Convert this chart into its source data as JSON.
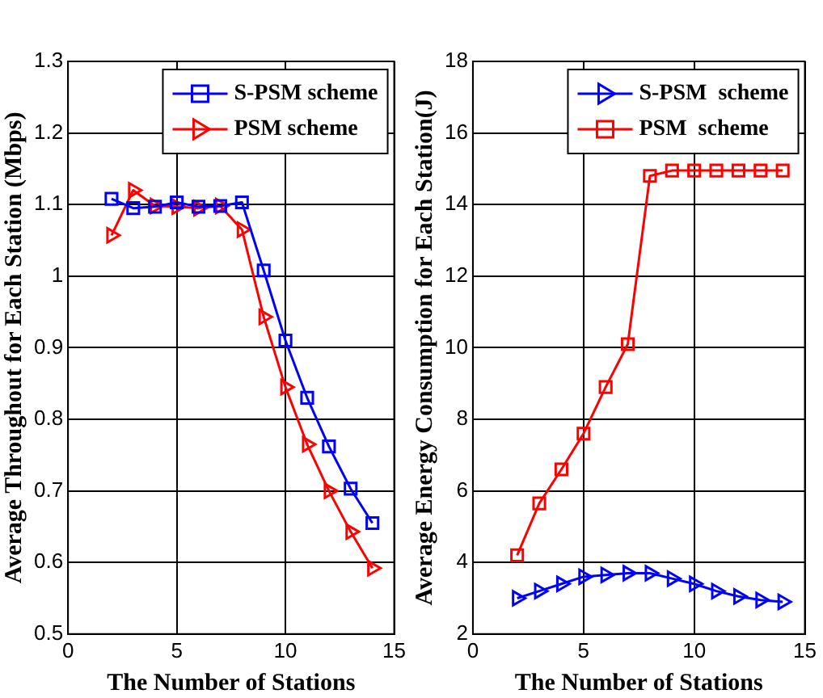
{
  "chart_data": [
    {
      "type": "line",
      "xlabel": "The Number of Stations",
      "ylabel": "Average Throughout for Each Station (Mbps)",
      "x": [
        2,
        3,
        4,
        5,
        6,
        7,
        8,
        9,
        10,
        11,
        12,
        13,
        14
      ],
      "xlim": [
        0,
        15
      ],
      "xticks": [
        0,
        5,
        10,
        15
      ],
      "ylim": [
        0.5,
        1.3
      ],
      "yticks": [
        0.5,
        0.6,
        0.7,
        0.8,
        0.9,
        1,
        1.1,
        1.2,
        1.3
      ],
      "grid": true,
      "legend": "top right",
      "line_style": "solid",
      "series": [
        {
          "name": "S-PSM scheme",
          "color": "#0000ff",
          "marker": "square",
          "values": [
            1.108,
            1.095,
            1.097,
            1.103,
            1.097,
            1.098,
            1.103,
            1.008,
            0.91,
            0.83,
            0.762,
            0.703,
            0.655
          ]
        },
        {
          "name": "PSM scheme",
          "color": "#ff0000",
          "marker": "triangle",
          "values": [
            1.057,
            1.12,
            1.098,
            1.097,
            1.095,
            1.098,
            1.065,
            0.943,
            0.845,
            0.765,
            0.7,
            0.643,
            0.592
          ]
        }
      ]
    },
    {
      "type": "line",
      "xlabel": "The Number of Stations",
      "ylabel": "Average Energy Consumption for Each Station(J)",
      "x": [
        2,
        3,
        4,
        5,
        6,
        7,
        8,
        9,
        10,
        11,
        12,
        13,
        14
      ],
      "xlim": [
        0,
        15
      ],
      "xticks": [
        0,
        5,
        10,
        15
      ],
      "ylim": [
        2,
        18
      ],
      "yticks": [
        2,
        4,
        6,
        8,
        10,
        12,
        14,
        16,
        18
      ],
      "grid": true,
      "legend": "top right",
      "line_style": "solid",
      "series": [
        {
          "name": "S-PSM  scheme",
          "color": "#0000ff",
          "marker": "triangle",
          "values": [
            3.0,
            3.2,
            3.4,
            3.6,
            3.65,
            3.7,
            3.7,
            3.55,
            3.4,
            3.2,
            3.05,
            2.95,
            2.9
          ]
        },
        {
          "name": "PSM  scheme",
          "color": "#ff0000",
          "marker": "square",
          "values": [
            4.2,
            5.65,
            6.6,
            7.6,
            8.9,
            10.1,
            14.8,
            14.95,
            14.95,
            14.95,
            14.95,
            14.95,
            14.95
          ]
        }
      ]
    }
  ]
}
